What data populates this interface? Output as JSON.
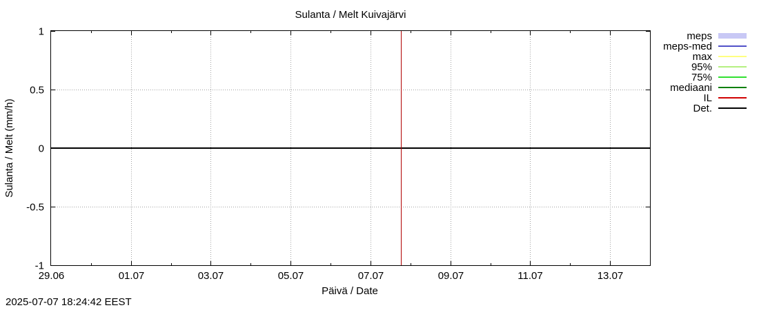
{
  "chart_data": {
    "type": "line",
    "title": "Sulanta / Melt  Kuivajärvi",
    "xlabel": "Päivä / Date",
    "ylabel": "Sulanta / Melt (mm/h)",
    "x_ticks": [
      "29.06",
      "01.07",
      "03.07",
      "05.07",
      "07.07",
      "09.07",
      "11.07",
      "13.07"
    ],
    "x_range_days": [
      0,
      15
    ],
    "y_ticks": [
      "1",
      "0.5",
      "0",
      "-0.5",
      "-1"
    ],
    "ylim": [
      -1,
      1
    ],
    "grid": true,
    "legend_position": "right-outside",
    "series": [
      {
        "name": "meps",
        "color": "#c8c8f5",
        "style": "band",
        "values": []
      },
      {
        "name": "meps-med",
        "color": "#5050c8",
        "style": "line",
        "values": []
      },
      {
        "name": "max",
        "color": "#ffff80",
        "style": "line",
        "values": []
      },
      {
        "name": "95%",
        "color": "#b4f080",
        "style": "line",
        "values": []
      },
      {
        "name": "75%",
        "color": "#30e030",
        "style": "line",
        "values": []
      },
      {
        "name": "mediaani",
        "color": "#008000",
        "style": "line",
        "values": []
      },
      {
        "name": "IL",
        "color": "#d00000",
        "style": "line",
        "values": []
      },
      {
        "name": "Det.",
        "color": "#000000",
        "style": "line",
        "values": [
          0,
          0
        ]
      }
    ],
    "det_x_days": [
      0,
      15
    ],
    "det_y": [
      0,
      0
    ],
    "now_marker_date": "07.07 18:24",
    "now_marker_day": 8.77,
    "now_marker_color": "#b00000"
  },
  "footer": {
    "timestamp": "2025-07-07 18:24:42 EEST"
  }
}
